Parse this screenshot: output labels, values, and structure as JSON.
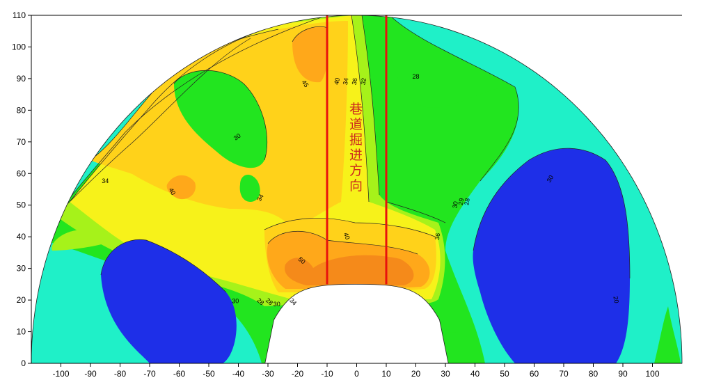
{
  "chart_data": {
    "type": "contour",
    "title": "",
    "xlabel": "",
    "ylabel": "",
    "xlim": [
      -110,
      110
    ],
    "ylim": [
      0,
      110
    ],
    "x_ticks": [
      -100,
      -90,
      -80,
      -70,
      -60,
      -50,
      -40,
      -30,
      -20,
      -10,
      0,
      10,
      20,
      30,
      40,
      50,
      60,
      70,
      80,
      90,
      100
    ],
    "y_ticks": [
      0,
      10,
      20,
      30,
      40,
      50,
      60,
      70,
      80,
      90,
      100,
      110
    ],
    "grid": false,
    "legend": "none",
    "domain_shape": "semicircle",
    "domain_radius": 110,
    "roadway_opening": {
      "half_width_bottom": 31,
      "half_width_top": 16,
      "crown_height": 25
    },
    "vertical_lines": {
      "x": [
        -10,
        10
      ],
      "y_from": 25,
      "y_to": 110,
      "color": "#e8120c"
    },
    "annotation": "巷道掘进方向",
    "contour_labels": [
      {
        "text": "45",
        "x": -18,
        "y": 88,
        "angle": 55
      },
      {
        "text": "40",
        "x": -6,
        "y": 89,
        "angle": -75
      },
      {
        "text": "34",
        "x": -3,
        "y": 89,
        "angle": -80
      },
      {
        "text": "36",
        "x": 0,
        "y": 89,
        "angle": -80
      },
      {
        "text": "32",
        "x": 3,
        "y": 89,
        "angle": -80
      },
      {
        "text": "28",
        "x": 20,
        "y": 90,
        "angle": 0
      },
      {
        "text": "30",
        "x": -40,
        "y": 71,
        "angle": -35
      },
      {
        "text": "34",
        "x": -85,
        "y": 57,
        "angle": 0
      },
      {
        "text": "40",
        "x": -63,
        "y": 54,
        "angle": 60
      },
      {
        "text": "34",
        "x": -32,
        "y": 52,
        "angle": -60
      },
      {
        "text": "30",
        "x": 34,
        "y": 50,
        "angle": -80
      },
      {
        "text": "29",
        "x": 36,
        "y": 51,
        "angle": -80
      },
      {
        "text": "28",
        "x": 38,
        "y": 51,
        "angle": -80
      },
      {
        "text": "30",
        "x": 66,
        "y": 58,
        "angle": -60
      },
      {
        "text": "40",
        "x": -4,
        "y": 40,
        "angle": 70
      },
      {
        "text": "36",
        "x": 28,
        "y": 40,
        "angle": -80
      },
      {
        "text": "50",
        "x": -19,
        "y": 32,
        "angle": 40
      },
      {
        "text": "30",
        "x": -41,
        "y": 19,
        "angle": 0
      },
      {
        "text": "28",
        "x": -33,
        "y": 19,
        "angle": 40
      },
      {
        "text": "28",
        "x": -30,
        "y": 19,
        "angle": 40
      },
      {
        "text": "30",
        "x": -27,
        "y": 18,
        "angle": 0
      },
      {
        "text": "34",
        "x": -22,
        "y": 19,
        "angle": 45
      },
      {
        "text": "20",
        "x": 87,
        "y": 20,
        "angle": 80
      }
    ]
  }
}
